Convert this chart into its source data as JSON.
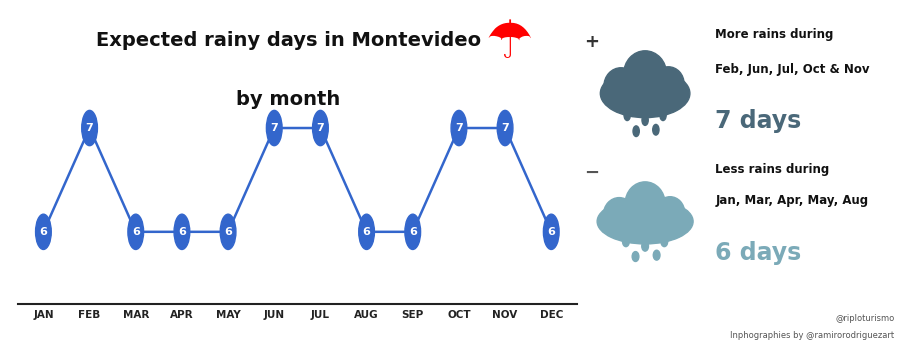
{
  "months": [
    "JAN",
    "FEB",
    "MAR",
    "APR",
    "MAY",
    "JUN",
    "JUL",
    "AUG",
    "SEP",
    "OCT",
    "NOV",
    "DEC"
  ],
  "values": [
    6,
    7,
    6,
    6,
    6,
    7,
    7,
    6,
    6,
    7,
    7,
    6
  ],
  "line_color": "#3366CC",
  "marker_color": "#3366CC",
  "title_line1": "Expected rainy days in Montevideo",
  "title_line2": "by month",
  "title_fontsize": 14,
  "value_fontsize": 8,
  "month_fontsize": 7.5,
  "bg_color": "#FFFFFF",
  "dark_cloud_color": "#4A6879",
  "light_cloud_color": "#7BAAB8",
  "more_rains_text1": "More rains during",
  "more_rains_text2": "Feb, Jun, Jul, Oct & Nov",
  "more_days": "7 days",
  "less_rains_text1": "Less rains during",
  "less_rains_text2": "Jan, Mar, Apr, May, Aug",
  "less_days": "6 days",
  "credit1": "@riploturismo",
  "credit2": "Inphographies by @ramirorodriguezart"
}
